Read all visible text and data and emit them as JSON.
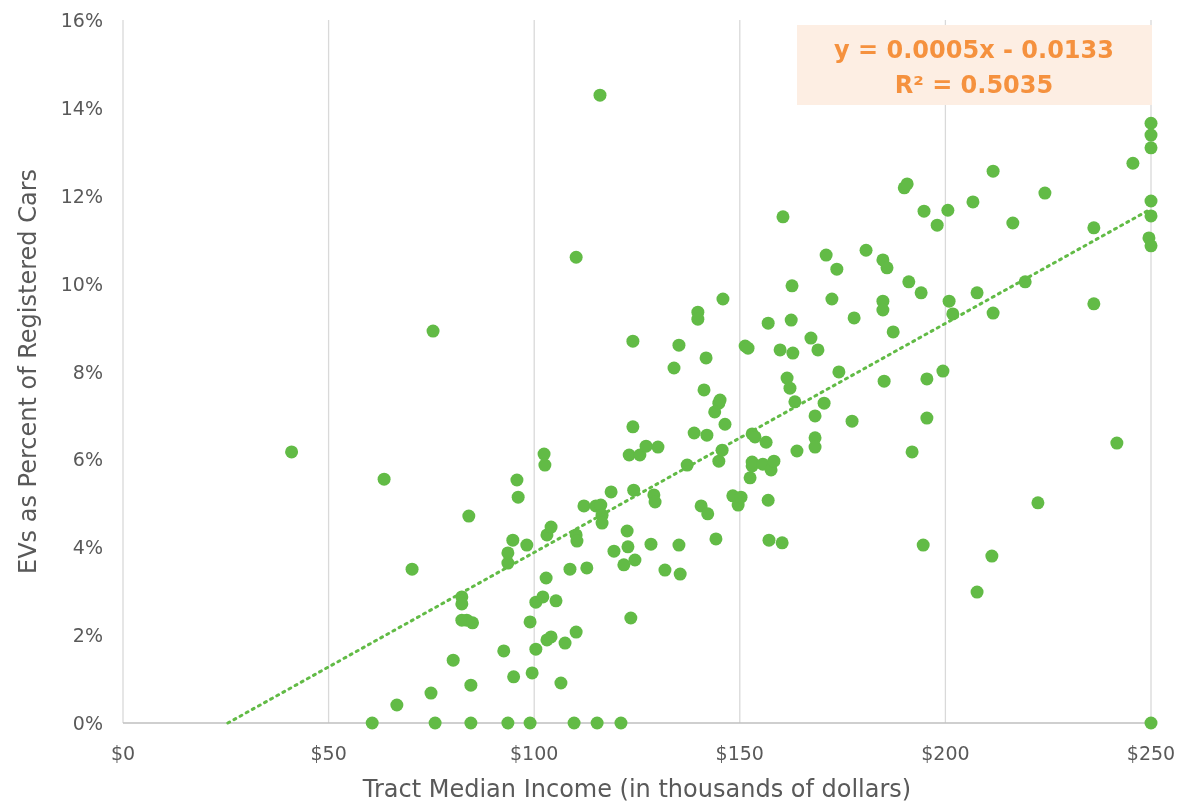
{
  "chart_data": {
    "type": "scatter",
    "xlabel": "Tract Median Income (in thousands of dollars)",
    "ylabel": "EVs as Percent of Registered Cars",
    "xlim": [
      0,
      250
    ],
    "xticks": [
      {
        "value": 0,
        "label": "$0"
      },
      {
        "value": 50,
        "label": "$50"
      },
      {
        "value": 100,
        "label": "$100"
      },
      {
        "value": 150,
        "label": "$150"
      },
      {
        "value": 200,
        "label": "$200"
      },
      {
        "value": 250,
        "label": "$250"
      }
    ],
    "ylim": [
      0,
      16
    ],
    "yticks": [
      {
        "value": 0,
        "label": "0%"
      },
      {
        "value": 2,
        "label": "2%"
      },
      {
        "value": 4,
        "label": "4%"
      },
      {
        "value": 6,
        "label": "6%"
      },
      {
        "value": 8,
        "label": "8%"
      },
      {
        "value": 10,
        "label": "10%"
      },
      {
        "value": 12,
        "label": "12%"
      },
      {
        "value": 14,
        "label": "14%"
      },
      {
        "value": 16,
        "label": "16%"
      }
    ],
    "grid": "x",
    "marker": "circle",
    "annotations": [
      "y = 0.0005x - 0.0133",
      "R² = 0.5035"
    ],
    "series": [
      {
        "color": "#62bb46",
        "x": [
          41,
          63.5,
          75.4,
          84.1,
          70.3,
          82.4,
          82.4,
          83.6,
          82.4,
          85,
          84.6,
          80.3,
          74.9,
          66.6,
          60.6,
          75.9,
          84.6,
          93.6,
          99,
          109.7,
          115.3,
          121.1,
          250,
          92.6,
          95,
          93.6,
          93.6,
          94.8,
          95.8,
          96.1,
          98.2,
          99,
          99.5,
          100.4,
          100.4,
          102.1,
          102.4,
          102.6,
          102.9,
          103.1,
          104.1,
          104.1,
          103.1,
          105.3,
          106.5,
          107.5,
          108.7,
          110.2,
          110.4,
          110.2,
          110.2,
          112.1,
          112.8,
          115,
          116.2,
          116.5,
          116.5,
          116,
          118.7,
          119.4,
          121.8,
          122.6,
          122.8,
          123.1,
          123.5,
          124.2,
          124.5,
          124,
          124,
          125.7,
          127.2,
          128.4,
          129.1,
          129.4,
          130.1,
          131.8,
          134,
          135.2,
          135.2,
          135.5,
          137.2,
          138.9,
          139.8,
          139.8,
          140.6,
          141.3,
          141.8,
          142,
          142.2,
          143.9,
          144.2,
          144.9,
          144.9,
          145.2,
          145.7,
          145.9,
          146.4,
          148.3,
          149.6,
          150.3,
          151.3,
          152,
          152.5,
          153,
          153,
          153,
          153.7,
          155.6,
          156.4,
          156.9,
          156.9,
          157.1,
          157.6,
          158.3,
          159.8,
          160.3,
          160.5,
          161.5,
          162.2,
          162.5,
          162.7,
          162.9,
          163.4,
          163.9,
          167.3,
          168.3,
          168.3,
          168.3,
          169,
          170.5,
          171,
          172.4,
          173.6,
          174.1,
          177.3,
          177.8,
          180.7,
          184.8,
          184.8,
          184.8,
          185.1,
          185.8,
          187.3,
          190,
          190.7,
          191.1,
          191.9,
          194.1,
          194.6,
          194.8,
          195.5,
          195.5,
          198,
          199.4,
          200.6,
          200.9,
          201.8,
          206.7,
          207.7,
          207.7,
          211.6,
          211.6,
          211.3,
          216.4,
          219.4,
          222.5,
          224.2,
          236.1,
          236.1,
          241.7,
          245.6,
          249.5,
          250,
          250,
          250,
          250,
          250,
          250
        ],
        "values": [
          6.17,
          5.55,
          8.92,
          4.71,
          3.5,
          2.87,
          2.71,
          2.34,
          2.34,
          2.28,
          0.86,
          1.43,
          0.68,
          0.41,
          0,
          0,
          0,
          0,
          0,
          0,
          0,
          0,
          0,
          1.64,
          1.05,
          3.64,
          3.87,
          4.16,
          5.53,
          5.14,
          4.05,
          2.3,
          1.14,
          2.75,
          1.68,
          2.87,
          6.12,
          5.87,
          3.3,
          4.28,
          4.46,
          1.96,
          1.89,
          2.78,
          0.91,
          1.82,
          3.5,
          4.28,
          4.14,
          2.07,
          10.6,
          4.94,
          3.53,
          4.94,
          4.96,
          4.73,
          4.55,
          14.29,
          5.26,
          3.91,
          3.6,
          4.37,
          4.01,
          6.1,
          2.39,
          5.3,
          3.71,
          6.74,
          8.69,
          6.1,
          6.3,
          4.07,
          5.19,
          5.03,
          6.28,
          3.48,
          8.08,
          8.6,
          4.05,
          3.39,
          5.87,
          6.6,
          9.35,
          9.19,
          4.94,
          7.58,
          8.31,
          6.55,
          4.76,
          7.08,
          4.19,
          5.96,
          7.28,
          7.35,
          6.21,
          9.65,
          6.8,
          5.17,
          4.96,
          5.14,
          8.58,
          8.53,
          5.58,
          5.85,
          5.94,
          6.58,
          6.51,
          5.89,
          6.39,
          9.1,
          5.07,
          4.16,
          5.76,
          5.96,
          8.49,
          4.1,
          11.52,
          7.85,
          7.62,
          9.17,
          9.95,
          8.42,
          7.31,
          6.19,
          8.76,
          6.49,
          6.28,
          6.99,
          8.49,
          7.28,
          10.65,
          9.65,
          10.33,
          7.99,
          6.87,
          9.22,
          10.76,
          10.54,
          9.6,
          9.4,
          7.78,
          10.36,
          8.9,
          12.18,
          12.27,
          10.04,
          6.17,
          9.79,
          4.05,
          11.65,
          6.94,
          7.83,
          11.33,
          8.01,
          11.67,
          9.6,
          9.31,
          11.86,
          9.79,
          2.98,
          12.56,
          9.33,
          3.8,
          11.38,
          10.04,
          5.01,
          12.06,
          11.27,
          9.54,
          6.37,
          12.74,
          11.04,
          13.65,
          13.38,
          13.09,
          11.88,
          11.54,
          10.86
        ]
      },
      {
        "type": "line",
        "color": "#62bb46",
        "line_style": "dotted",
        "marker": "none",
        "x": [
          25.5,
          250
        ],
        "values": [
          0,
          11.7
        ]
      }
    ]
  }
}
